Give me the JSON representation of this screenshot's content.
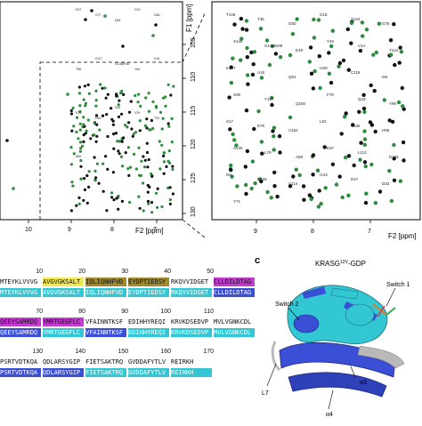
{
  "panel_label_c": "c",
  "structure_title": "KRASG",
  "structure_title_sup": "12V",
  "structure_title_suffix": "-GDP",
  "structure_labels": {
    "switch1": "Switch 1",
    "switch2": "Switch 2",
    "l7": "L7",
    "a3": "α3",
    "a4": "α4"
  },
  "left_spectrum": {
    "f1_label": "F1 [ppm]",
    "f2_label": "F2 [ppm]",
    "y_ticks": [
      "105",
      "110",
      "115",
      "120",
      "125",
      "130"
    ],
    "x_ticks": [
      "10",
      "9",
      "8",
      "7"
    ],
    "peak_labels": [
      "E37",
      "G77",
      "Q61",
      "G10",
      "G60",
      "T58",
      "K117",
      "G138/E98",
      "Y64",
      "K16",
      "E31",
      "H95",
      "S39",
      "V29",
      "T20",
      "A59"
    ]
  },
  "right_spectrum": {
    "f2_label": "F2 [ppm]",
    "x_ticks": [
      "9",
      "8",
      "7"
    ],
    "peak_labels": [
      "T148",
      "T35",
      "G60",
      "G15",
      "T144",
      "G75",
      "S145",
      "G138/E98",
      "E49",
      "Y40",
      "V14",
      "T124",
      "K147",
      "A18",
      "Q61",
      "I100",
      "C118",
      "I93",
      "S39",
      "Y157",
      "Q150",
      "F78",
      "Q43",
      "Y96",
      "S17",
      "E76",
      "V152",
      "L53",
      "A155",
      "H95",
      "A130",
      "L79",
      "A59",
      "E37",
      "L113",
      "D126",
      "I84",
      "D105",
      "V114",
      "I143",
      "D47",
      "D33",
      "Y71"
    ]
  },
  "sequence": {
    "rows": [
      {
        "numbers": [
          "10",
          "20",
          "30",
          "40",
          "50"
        ],
        "top": [
          "MTEYKLVVVG",
          "AVGVGKSALT",
          "IQLIQNHFVD",
          "EYDPTIEDSY",
          "RKQVVIDGET",
          "CLLDILDTAG"
        ],
        "bottom": [
          "MTEYKLVVVG",
          "AVGVGKSALT",
          "IQLIQNHFVD",
          "EYDPTIEDSY",
          "RKQVVIDGET",
          "CLLDILDTAG"
        ]
      },
      {
        "numbers": [
          "70",
          "80",
          "90",
          "100",
          "110"
        ],
        "top": [
          "QEEYSAMRDQ",
          "YMRTGEGFLC",
          "VFAINNTKSF",
          "EDIHHYREQI",
          "KRVKDSEDVP",
          "MVLVGNKCDL"
        ],
        "bottom": [
          "QEEYSAMRDQ",
          "YMRTGEGFLC",
          "VFAINNTKSF",
          "EDIHHYREQI",
          "KRVKDSEDVP",
          "MVLVGNKCDL"
        ]
      },
      {
        "numbers": [
          "130",
          "140",
          "150",
          "160",
          "170"
        ],
        "top": [
          "PSRTVDTKQA",
          "QDLARSYGIP",
          "FIETSAKTRQ",
          "GVDDAFYTLV",
          "REIRKH"
        ],
        "bottom": [
          "PSRTVDTKQA",
          "QDLARSYGIP",
          "FIETSAKTRQ",
          "GVDDAFYTLV",
          "REIRKH"
        ]
      }
    ]
  },
  "colors": {
    "green_peak": "#2e8b3d",
    "black_peak": "#111111",
    "cyan": "#33c6d3",
    "blue": "#3a4fd6",
    "yellow": "#f2e94e",
    "olive": "#a08a2a",
    "magenta": "#c43ccf",
    "grey": "#b9b9b9"
  }
}
